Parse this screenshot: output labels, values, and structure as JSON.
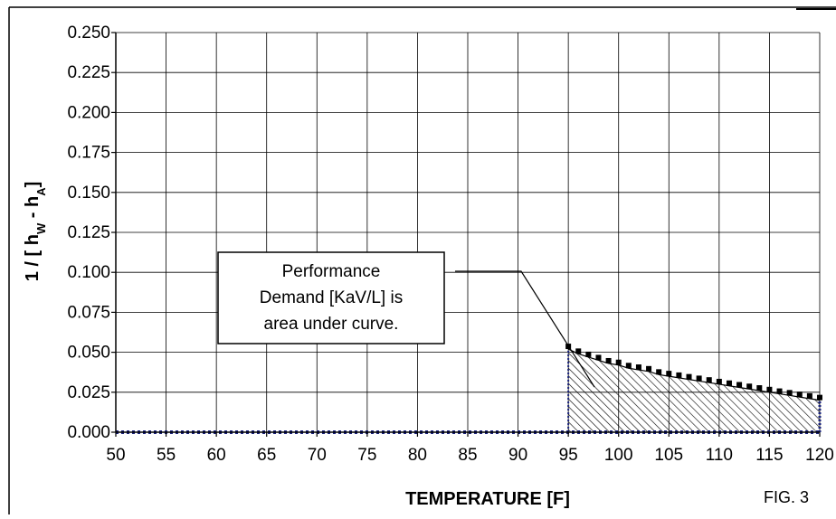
{
  "chart_data": {
    "type": "area",
    "xlabel": "TEMPERATURE [F]",
    "ylabel_prefix": "1 / [ h",
    "ylabel_sub1": "W",
    "ylabel_mid": " - h",
    "ylabel_sub2": "A",
    "ylabel_suffix": "]",
    "figure_label": "FIG. 3",
    "annotation": [
      "Performance",
      "Demand [KaV/L] is",
      "area under curve."
    ],
    "xlim": [
      50,
      120
    ],
    "ylim": [
      0,
      0.25
    ],
    "x_ticks": [
      "50",
      "55",
      "60",
      "65",
      "70",
      "75",
      "80",
      "85",
      "90",
      "95",
      "100",
      "105",
      "110",
      "115",
      "120"
    ],
    "y_ticks": [
      "0.000",
      "0.025",
      "0.050",
      "0.075",
      "0.100",
      "0.125",
      "0.150",
      "0.175",
      "0.200",
      "0.225",
      "0.250"
    ],
    "grid": true,
    "series": [
      {
        "x": [
          95,
          96,
          97,
          98,
          99,
          100,
          101,
          102,
          103,
          104,
          105,
          106,
          107,
          108,
          109,
          110,
          111,
          112,
          113,
          114,
          115,
          116,
          117,
          118,
          119,
          120
        ],
        "y": [
          0.052,
          0.049,
          0.047,
          0.045,
          0.043,
          0.042,
          0.04,
          0.039,
          0.038,
          0.036,
          0.035,
          0.034,
          0.033,
          0.032,
          0.031,
          0.03,
          0.029,
          0.028,
          0.027,
          0.026,
          0.025,
          0.024,
          0.023,
          0.022,
          0.021,
          0.02
        ]
      }
    ],
    "baseline": {
      "x": [
        50,
        120
      ],
      "y": [
        0,
        0
      ]
    },
    "colors": {
      "curve": "#000000",
      "baseline": "#1a237e",
      "grid": "#000000",
      "hatch": "#000000"
    }
  }
}
